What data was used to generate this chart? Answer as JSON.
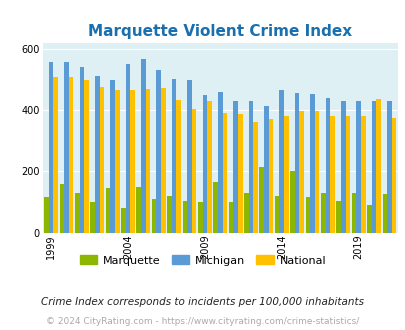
{
  "title": "Marquette Violent Crime Index",
  "years": [
    1999,
    2000,
    2001,
    2002,
    2003,
    2004,
    2005,
    2006,
    2007,
    2008,
    2009,
    2010,
    2011,
    2012,
    2013,
    2014,
    2015,
    2016,
    2017,
    2018,
    2019,
    2020,
    2021
  ],
  "marquette": [
    115,
    160,
    130,
    100,
    145,
    80,
    150,
    110,
    120,
    105,
    100,
    165,
    100,
    130,
    215,
    120,
    200,
    115,
    130,
    105,
    130,
    90,
    125
  ],
  "michigan": [
    557,
    557,
    540,
    512,
    498,
    550,
    568,
    533,
    502,
    499,
    449,
    459,
    430,
    430,
    415,
    465,
    456,
    452,
    440,
    430,
    430,
    430,
    430
  ],
  "national": [
    508,
    508,
    499,
    475,
    465,
    465,
    469,
    474,
    432,
    405,
    430,
    390,
    387,
    363,
    370,
    380,
    399,
    398,
    380,
    380,
    380,
    437,
    375
  ],
  "bar_colors": {
    "marquette": "#8db600",
    "michigan": "#5b9bd5",
    "national": "#ffc000"
  },
  "plot_bg": "#dff0f5",
  "ylim": [
    0,
    620
  ],
  "yticks": [
    0,
    200,
    400,
    600
  ],
  "label_years": [
    1999,
    2004,
    2009,
    2014,
    2019
  ],
  "legend_labels": [
    "Marquette",
    "Michigan",
    "National"
  ],
  "footer1": "Crime Index corresponds to incidents per 100,000 inhabitants",
  "footer2": "© 2024 CityRating.com - https://www.cityrating.com/crime-statistics/",
  "title_color": "#1a6faf",
  "footer1_color": "#222222",
  "footer2_color": "#aaaaaa",
  "title_fontsize": 11,
  "tick_fontsize": 7,
  "legend_fontsize": 8,
  "footer1_fontsize": 7.5,
  "footer2_fontsize": 6.5
}
